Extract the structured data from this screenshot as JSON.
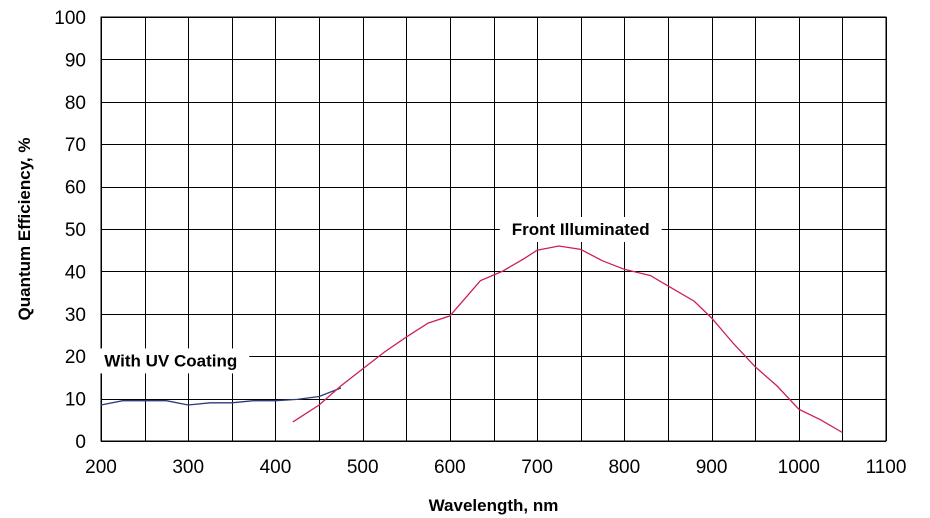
{
  "chart_data": {
    "type": "line",
    "title": "",
    "xlabel": "Wavelength,  nm",
    "ylabel": "Quantum Efficiency, %",
    "xlim": [
      200,
      1100
    ],
    "ylim": [
      0,
      100
    ],
    "x_ticks": [
      "200",
      "300",
      "400",
      "500",
      "600",
      "700",
      "800",
      "900",
      "1000",
      "1100"
    ],
    "y_ticks": [
      "0",
      "10",
      "20",
      "30",
      "40",
      "50",
      "60",
      "70",
      "80",
      "90",
      "100"
    ],
    "grid": true,
    "x_grid_step": 50,
    "y_grid_step": 10,
    "series": [
      {
        "name": "With UV Coating",
        "color": "#2b3a7a",
        "points": [
          [
            200,
            8.5
          ],
          [
            225,
            9.5
          ],
          [
            250,
            9.5
          ],
          [
            275,
            9.5
          ],
          [
            300,
            8.5
          ],
          [
            325,
            9
          ],
          [
            350,
            9
          ],
          [
            375,
            9.5
          ],
          [
            400,
            9.5
          ],
          [
            425,
            9.8
          ],
          [
            450,
            10.5
          ],
          [
            475,
            12.5
          ]
        ]
      },
      {
        "name": "Front Illuminated",
        "color": "#cc1f5a",
        "points": [
          [
            420,
            4.5
          ],
          [
            450,
            8.5
          ],
          [
            475,
            13
          ],
          [
            500,
            17
          ],
          [
            525,
            21
          ],
          [
            550,
            24.5
          ],
          [
            575,
            27.8
          ],
          [
            600,
            29.5
          ],
          [
            635,
            37.8
          ],
          [
            660,
            40
          ],
          [
            685,
            43
          ],
          [
            700,
            45
          ],
          [
            725,
            46
          ],
          [
            750,
            45.2
          ],
          [
            775,
            42.5
          ],
          [
            800,
            40.5
          ],
          [
            830,
            39
          ],
          [
            855,
            36
          ],
          [
            880,
            33
          ],
          [
            900,
            29
          ],
          [
            925,
            23
          ],
          [
            950,
            17.5
          ],
          [
            975,
            13
          ],
          [
            1000,
            7.5
          ],
          [
            1025,
            5
          ],
          [
            1050,
            2
          ]
        ]
      }
    ],
    "annotations": [
      {
        "text": "Front Illuminated",
        "x": 750,
        "y": 50,
        "series": 1
      },
      {
        "text": "With UV Coating",
        "x": 280,
        "y": 19,
        "series": 0
      }
    ]
  }
}
